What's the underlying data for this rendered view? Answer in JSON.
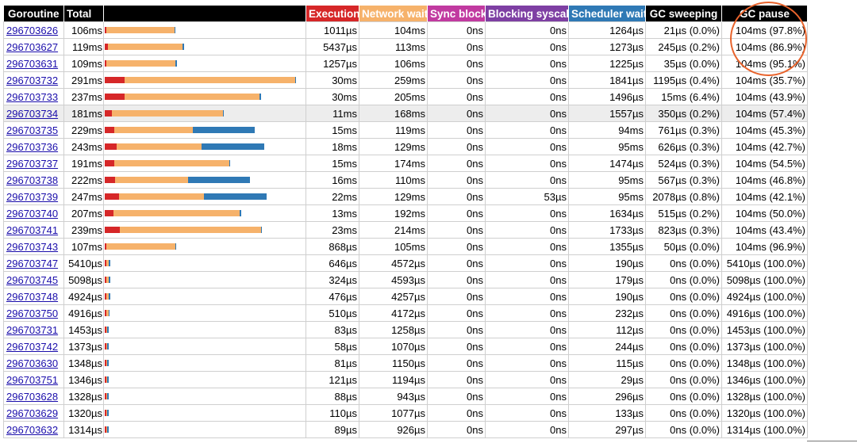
{
  "headers": {
    "goroutine": "Goroutine",
    "total": "Total",
    "bar": "",
    "execution": "Execution",
    "network_wait": "Network wait",
    "sync_block": "Sync block",
    "blocking_syscall": "Blocking syscall",
    "scheduler_wait": "Scheduler wait",
    "gc_sweeping": "GC sweeping",
    "gc_pause": "GC pause"
  },
  "header_colors": {
    "execution": "#d62728",
    "network_wait": "#f6b26b",
    "sync_block": "#c13aa0",
    "blocking_syscall": "#7e3fa3",
    "scheduler_wait": "#2f79b5",
    "default": "#000000"
  },
  "segment_colors": {
    "execution": "#d62728",
    "network_wait": "#f6b26b",
    "scheduler_wait": "#2f79b5"
  },
  "annotation": {
    "shape": "circle",
    "target": "GC pause column top rows",
    "color": "#e8632c"
  },
  "rows": [
    {
      "id": "296703626",
      "total": "106ms",
      "exec": "1011µs",
      "net": "104ms",
      "sync": "0ns",
      "syscall": "0ns",
      "sched": "1264µs",
      "sweep": "21µs (0.0%)",
      "pause": "104ms (97.8%)",
      "bar": {
        "exec": 1.0,
        "net": 104,
        "sched": 1.264
      }
    },
    {
      "id": "296703627",
      "total": "119ms",
      "exec": "5437µs",
      "net": "113ms",
      "sync": "0ns",
      "syscall": "0ns",
      "sched": "1273µs",
      "sweep": "245µs (0.2%)",
      "pause": "104ms (86.9%)",
      "bar": {
        "exec": 5.4,
        "net": 113,
        "sched": 1.273
      }
    },
    {
      "id": "296703631",
      "total": "109ms",
      "exec": "1257µs",
      "net": "106ms",
      "sync": "0ns",
      "syscall": "0ns",
      "sched": "1225µs",
      "sweep": "35µs (0.0%)",
      "pause": "104ms (95.1%)",
      "bar": {
        "exec": 1.3,
        "net": 106,
        "sched": 1.225
      }
    },
    {
      "id": "296703732",
      "total": "291ms",
      "exec": "30ms",
      "net": "259ms",
      "sync": "0ns",
      "syscall": "0ns",
      "sched": "1841µs",
      "sweep": "1195µs (0.4%)",
      "pause": "104ms (35.7%)",
      "bar": {
        "exec": 30,
        "net": 259,
        "sched": 1.841
      }
    },
    {
      "id": "296703733",
      "total": "237ms",
      "exec": "30ms",
      "net": "205ms",
      "sync": "0ns",
      "syscall": "0ns",
      "sched": "1496µs",
      "sweep": "15ms (6.4%)",
      "pause": "104ms (43.9%)",
      "bar": {
        "exec": 30,
        "net": 205,
        "sched": 1.496
      }
    },
    {
      "id": "296703734",
      "total": "181ms",
      "exec": "11ms",
      "net": "168ms",
      "sync": "0ns",
      "syscall": "0ns",
      "sched": "1557µs",
      "sweep": "350µs (0.2%)",
      "pause": "104ms (57.4%)",
      "bar": {
        "exec": 11,
        "net": 168,
        "sched": 1.557
      },
      "highlight": true
    },
    {
      "id": "296703735",
      "total": "229ms",
      "exec": "15ms",
      "net": "119ms",
      "sync": "0ns",
      "syscall": "0ns",
      "sched": "94ms",
      "sweep": "761µs (0.3%)",
      "pause": "104ms (45.3%)",
      "bar": {
        "exec": 15,
        "net": 119,
        "sched": 94
      }
    },
    {
      "id": "296703736",
      "total": "243ms",
      "exec": "18ms",
      "net": "129ms",
      "sync": "0ns",
      "syscall": "0ns",
      "sched": "95ms",
      "sweep": "626µs (0.3%)",
      "pause": "104ms (42.7%)",
      "bar": {
        "exec": 18,
        "net": 129,
        "sched": 95
      }
    },
    {
      "id": "296703737",
      "total": "191ms",
      "exec": "15ms",
      "net": "174ms",
      "sync": "0ns",
      "syscall": "0ns",
      "sched": "1474µs",
      "sweep": "524µs (0.3%)",
      "pause": "104ms (54.5%)",
      "bar": {
        "exec": 15,
        "net": 174,
        "sched": 1.474
      }
    },
    {
      "id": "296703738",
      "total": "222ms",
      "exec": "16ms",
      "net": "110ms",
      "sync": "0ns",
      "syscall": "0ns",
      "sched": "95ms",
      "sweep": "567µs (0.3%)",
      "pause": "104ms (46.8%)",
      "bar": {
        "exec": 16,
        "net": 110,
        "sched": 95
      }
    },
    {
      "id": "296703739",
      "total": "247ms",
      "exec": "22ms",
      "net": "129ms",
      "sync": "0ns",
      "syscall": "53µs",
      "sched": "95ms",
      "sweep": "2078µs (0.8%)",
      "pause": "104ms (42.1%)",
      "bar": {
        "exec": 22,
        "net": 129,
        "sched": 95
      }
    },
    {
      "id": "296703740",
      "total": "207ms",
      "exec": "13ms",
      "net": "192ms",
      "sync": "0ns",
      "syscall": "0ns",
      "sched": "1634µs",
      "sweep": "515µs (0.2%)",
      "pause": "104ms (50.0%)",
      "bar": {
        "exec": 13,
        "net": 192,
        "sched": 1.634
      }
    },
    {
      "id": "296703741",
      "total": "239ms",
      "exec": "23ms",
      "net": "214ms",
      "sync": "0ns",
      "syscall": "0ns",
      "sched": "1733µs",
      "sweep": "823µs (0.3%)",
      "pause": "104ms (43.4%)",
      "bar": {
        "exec": 23,
        "net": 214,
        "sched": 1.733
      }
    },
    {
      "id": "296703743",
      "total": "107ms",
      "exec": "868µs",
      "net": "105ms",
      "sync": "0ns",
      "syscall": "0ns",
      "sched": "1355µs",
      "sweep": "50µs (0.0%)",
      "pause": "104ms (96.9%)",
      "bar": {
        "exec": 0.868,
        "net": 105,
        "sched": 1.355
      }
    },
    {
      "id": "296703747",
      "total": "5410µs",
      "exec": "646µs",
      "net": "4572µs",
      "sync": "0ns",
      "syscall": "0ns",
      "sched": "190µs",
      "sweep": "0ns (0.0%)",
      "pause": "5410µs (100.0%)",
      "bar": {
        "exec": 0.646,
        "net": 4.572,
        "sched": 0.19
      }
    },
    {
      "id": "296703745",
      "total": "5098µs",
      "exec": "324µs",
      "net": "4593µs",
      "sync": "0ns",
      "syscall": "0ns",
      "sched": "179µs",
      "sweep": "0ns (0.0%)",
      "pause": "5098µs (100.0%)",
      "bar": {
        "exec": 0.324,
        "net": 4.593,
        "sched": 0.179
      }
    },
    {
      "id": "296703748",
      "total": "4924µs",
      "exec": "476µs",
      "net": "4257µs",
      "sync": "0ns",
      "syscall": "0ns",
      "sched": "190µs",
      "sweep": "0ns (0.0%)",
      "pause": "4924µs (100.0%)",
      "bar": {
        "exec": 0.476,
        "net": 4.257,
        "sched": 0.19
      }
    },
    {
      "id": "296703750",
      "total": "4916µs",
      "exec": "510µs",
      "net": "4172µs",
      "sync": "0ns",
      "syscall": "0ns",
      "sched": "232µs",
      "sweep": "0ns (0.0%)",
      "pause": "4916µs (100.0%)",
      "bar": {
        "exec": 0.51,
        "net": 4.172,
        "sched": 0.232
      }
    },
    {
      "id": "296703731",
      "total": "1453µs",
      "exec": "83µs",
      "net": "1258µs",
      "sync": "0ns",
      "syscall": "0ns",
      "sched": "112µs",
      "sweep": "0ns (0.0%)",
      "pause": "1453µs (100.0%)",
      "bar": {
        "exec": 0.083,
        "net": 1.258,
        "sched": 0.112
      }
    },
    {
      "id": "296703742",
      "total": "1373µs",
      "exec": "58µs",
      "net": "1070µs",
      "sync": "0ns",
      "syscall": "0ns",
      "sched": "244µs",
      "sweep": "0ns (0.0%)",
      "pause": "1373µs (100.0%)",
      "bar": {
        "exec": 0.058,
        "net": 1.07,
        "sched": 0.244
      }
    },
    {
      "id": "296703630",
      "total": "1348µs",
      "exec": "81µs",
      "net": "1150µs",
      "sync": "0ns",
      "syscall": "0ns",
      "sched": "115µs",
      "sweep": "0ns (0.0%)",
      "pause": "1348µs (100.0%)",
      "bar": {
        "exec": 0.081,
        "net": 1.15,
        "sched": 0.115
      }
    },
    {
      "id": "296703751",
      "total": "1346µs",
      "exec": "121µs",
      "net": "1194µs",
      "sync": "0ns",
      "syscall": "0ns",
      "sched": "29µs",
      "sweep": "0ns (0.0%)",
      "pause": "1346µs (100.0%)",
      "bar": {
        "exec": 0.121,
        "net": 1.194,
        "sched": 0.029
      }
    },
    {
      "id": "296703628",
      "total": "1328µs",
      "exec": "88µs",
      "net": "943µs",
      "sync": "0ns",
      "syscall": "0ns",
      "sched": "296µs",
      "sweep": "0ns (0.0%)",
      "pause": "1328µs (100.0%)",
      "bar": {
        "exec": 0.088,
        "net": 0.943,
        "sched": 0.296
      }
    },
    {
      "id": "296703629",
      "total": "1320µs",
      "exec": "110µs",
      "net": "1077µs",
      "sync": "0ns",
      "syscall": "0ns",
      "sched": "133µs",
      "sweep": "0ns (0.0%)",
      "pause": "1320µs (100.0%)",
      "bar": {
        "exec": 0.11,
        "net": 1.077,
        "sched": 0.133
      }
    },
    {
      "id": "296703632",
      "total": "1314µs",
      "exec": "89µs",
      "net": "926µs",
      "sync": "0ns",
      "syscall": "0ns",
      "sched": "297µs",
      "sweep": "0ns (0.0%)",
      "pause": "1314µs (100.0%)",
      "bar": {
        "exec": 0.089,
        "net": 0.926,
        "sched": 0.297
      }
    }
  ]
}
